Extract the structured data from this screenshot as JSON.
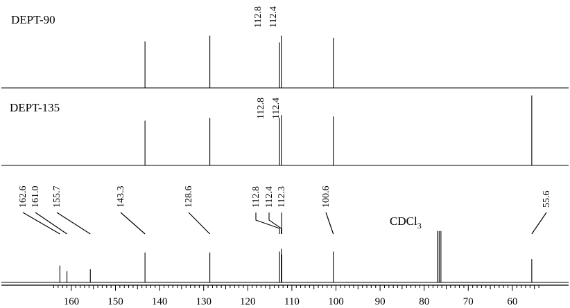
{
  "chart_data": [
    {
      "type": "line",
      "title": "DEPT-90",
      "xlim": [
        166,
        52
      ],
      "peaks": [
        {
          "ppm": 143.3,
          "height": 0.82
        },
        {
          "ppm": 128.6,
          "height": 0.92
        },
        {
          "ppm": 112.8,
          "height": 0.8
        },
        {
          "ppm": 112.4,
          "height": 0.92
        },
        {
          "ppm": 100.6,
          "height": 0.88
        }
      ],
      "peak_labels": [
        "112.8",
        "112.4"
      ]
    },
    {
      "type": "line",
      "title": "DEPT-135",
      "xlim": [
        166,
        52
      ],
      "peaks": [
        {
          "ppm": 143.3,
          "height": 0.64
        },
        {
          "ppm": 128.6,
          "height": 0.68
        },
        {
          "ppm": 112.8,
          "height": 0.68
        },
        {
          "ppm": 112.4,
          "height": 0.72
        },
        {
          "ppm": 100.6,
          "height": 0.7
        },
        {
          "ppm": 55.6,
          "height": 1.0
        }
      ],
      "peak_labels": [
        "112.8",
        "112.4"
      ]
    },
    {
      "type": "line",
      "title": "",
      "xlim": [
        166,
        52
      ],
      "peaks": [
        {
          "ppm": 162.6,
          "height": 0.18
        },
        {
          "ppm": 161.0,
          "height": 0.12
        },
        {
          "ppm": 155.7,
          "height": 0.14
        },
        {
          "ppm": 143.3,
          "height": 0.32
        },
        {
          "ppm": 128.6,
          "height": 0.32
        },
        {
          "ppm": 112.8,
          "height": 0.33
        },
        {
          "ppm": 112.4,
          "height": 0.36
        },
        {
          "ppm": 112.3,
          "height": 0.3
        },
        {
          "ppm": 100.6,
          "height": 0.33
        },
        {
          "ppm": 77.0,
          "height": 0.55
        },
        {
          "ppm": 76.6,
          "height": 0.55
        },
        {
          "ppm": 76.2,
          "height": 0.55
        },
        {
          "ppm": 55.6,
          "height": 0.25
        }
      ],
      "peak_labels": [
        "162.6",
        "161.0",
        "155.7",
        "143.3",
        "128.6",
        "112.8",
        "112.4",
        "112.3",
        "100.6",
        "55.6"
      ],
      "solvent_label": "CDCl",
      "solvent_subscript": "3",
      "xticks": [
        160,
        150,
        140,
        130,
        120,
        110,
        100,
        90,
        80,
        70,
        60
      ]
    }
  ]
}
